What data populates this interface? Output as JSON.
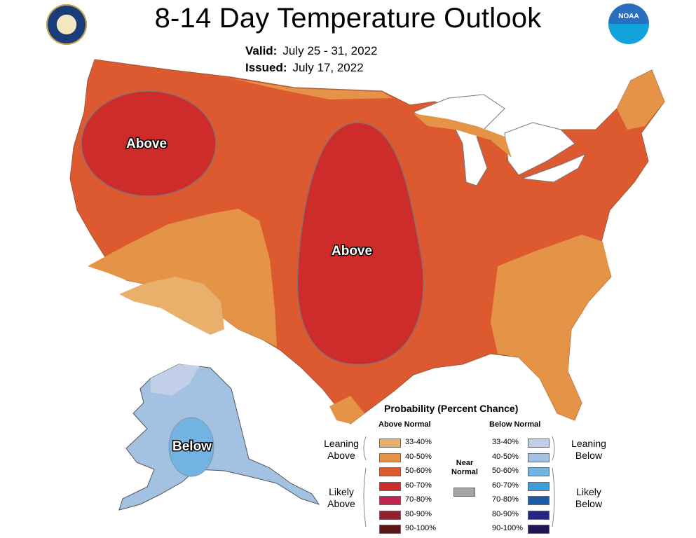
{
  "header": {
    "title": "8-14 Day Temperature Outlook",
    "valid_label": "Valid:",
    "valid_value": "July 25 - 31, 2022",
    "issued_label": "Issued:",
    "issued_value": "July 17, 2022",
    "left_logo": "department-of-commerce-seal",
    "right_logo": "noaa-logo",
    "noaa_text": "NOAA"
  },
  "map": {
    "regions": [
      {
        "label": "Above",
        "category": "above",
        "probability": "60-70%"
      },
      {
        "label": "Above",
        "category": "above",
        "probability": "60-70%"
      },
      {
        "label": "Below",
        "category": "below",
        "probability": "50-60%"
      }
    ]
  },
  "legend": {
    "title": "Probability (Percent Chance)",
    "above_header": "Above Normal",
    "below_header": "Below Normal",
    "leaning_above": "Leaning Above",
    "likely_above": "Likely Above",
    "leaning_below": "Leaning Below",
    "likely_below": "Likely Below",
    "near_label": "Near Normal",
    "near_color": "#a6a6a6",
    "above": [
      {
        "range": "33-40%",
        "color": "#e8b06a"
      },
      {
        "range": "40-50%",
        "color": "#e49347"
      },
      {
        "range": "50-60%",
        "color": "#dd5a30"
      },
      {
        "range": "60-70%",
        "color": "#cd2c2a"
      },
      {
        "range": "70-80%",
        "color": "#c4244d"
      },
      {
        "range": "80-90%",
        "color": "#8e222d"
      },
      {
        "range": "90-100%",
        "color": "#5b1717"
      }
    ],
    "below": [
      {
        "range": "33-40%",
        "color": "#c2cfe8"
      },
      {
        "range": "40-50%",
        "color": "#a3c2e1"
      },
      {
        "range": "50-60%",
        "color": "#73b3e2"
      },
      {
        "range": "60-70%",
        "color": "#3d9ed9"
      },
      {
        "range": "70-80%",
        "color": "#1a5ca8"
      },
      {
        "range": "80-90%",
        "color": "#2a2580"
      },
      {
        "range": "90-100%",
        "color": "#1c1754"
      }
    ]
  }
}
